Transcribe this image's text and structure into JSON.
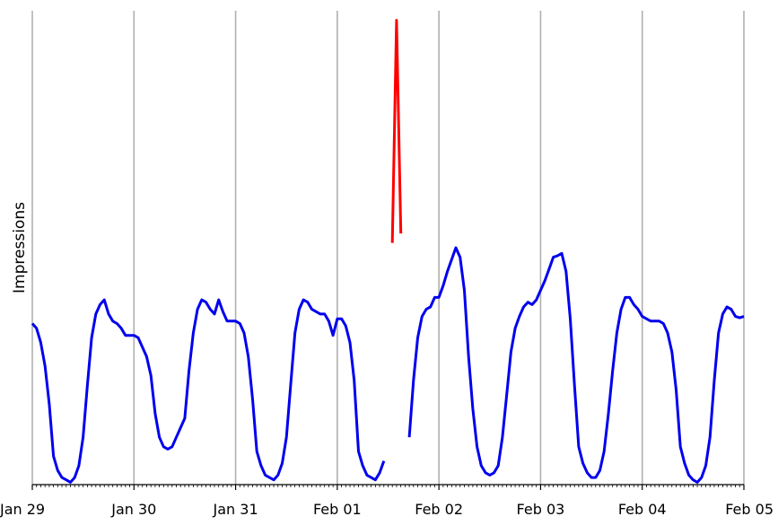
{
  "chart_data": {
    "type": "line",
    "title": "",
    "xlabel": "",
    "ylabel": "Impressions",
    "grid": "vertical",
    "x_axis": {
      "start": "2022-01-29T00:00",
      "end": "2022-02-05T00:00",
      "major_tick_labels": [
        "Jan 29",
        "Jan 30",
        "Jan 31",
        "Feb 01",
        "Feb 02",
        "Feb 03",
        "Feb 04",
        "Feb 05"
      ],
      "minor_ticks_per_day": 24
    },
    "y_axis": {
      "range": [
        0,
        100
      ],
      "tick_labels": []
    },
    "series": [
      {
        "color": "#0000ee",
        "segments": [
          [
            [
              "2022-01-29T00:00",
              34
            ],
            [
              "2022-01-29T01:00",
              33
            ],
            [
              "2022-01-29T02:00",
              30
            ],
            [
              "2022-01-29T03:00",
              25
            ],
            [
              "2022-01-29T04:00",
              17
            ],
            [
              "2022-01-29T05:00",
              6
            ],
            [
              "2022-01-29T06:00",
              3
            ],
            [
              "2022-01-29T07:00",
              1.5
            ],
            [
              "2022-01-29T08:00",
              1
            ],
            [
              "2022-01-29T09:00",
              0.5
            ],
            [
              "2022-01-29T10:00",
              1.5
            ],
            [
              "2022-01-29T11:00",
              4
            ],
            [
              "2022-01-29T12:00",
              10
            ],
            [
              "2022-01-29T13:00",
              21
            ],
            [
              "2022-01-29T14:00",
              31
            ],
            [
              "2022-01-29T15:00",
              36
            ],
            [
              "2022-01-29T16:00",
              38
            ],
            [
              "2022-01-29T17:00",
              39
            ],
            [
              "2022-01-29T18:00",
              36
            ],
            [
              "2022-01-29T19:00",
              34.5
            ],
            [
              "2022-01-29T20:00",
              34
            ],
            [
              "2022-01-29T21:00",
              33
            ],
            [
              "2022-01-29T22:00",
              31.5
            ],
            [
              "2022-01-29T23:00",
              31.5
            ],
            [
              "2022-01-30T00:00",
              31.5
            ],
            [
              "2022-01-30T01:00",
              31
            ],
            [
              "2022-01-30T02:00",
              29
            ],
            [
              "2022-01-30T03:00",
              27
            ],
            [
              "2022-01-30T04:00",
              23
            ],
            [
              "2022-01-30T05:00",
              15
            ],
            [
              "2022-01-30T06:00",
              10
            ],
            [
              "2022-01-30T07:00",
              8
            ],
            [
              "2022-01-30T08:00",
              7.5
            ],
            [
              "2022-01-30T09:00",
              8
            ],
            [
              "2022-01-30T10:00",
              10
            ],
            [
              "2022-01-30T11:00",
              12
            ],
            [
              "2022-01-30T12:00",
              14
            ],
            [
              "2022-01-30T13:00",
              24
            ],
            [
              "2022-01-30T14:00",
              32
            ],
            [
              "2022-01-30T15:00",
              37
            ],
            [
              "2022-01-30T16:00",
              39
            ],
            [
              "2022-01-30T17:00",
              38.5
            ],
            [
              "2022-01-30T18:00",
              37
            ],
            [
              "2022-01-30T19:00",
              36
            ],
            [
              "2022-01-30T20:00",
              39
            ],
            [
              "2022-01-30T21:00",
              36.5
            ],
            [
              "2022-01-30T22:00",
              34.5
            ],
            [
              "2022-01-30T23:00",
              34.5
            ],
            [
              "2022-01-31T00:00",
              34.5
            ],
            [
              "2022-01-31T01:00",
              34
            ],
            [
              "2022-01-31T02:00",
              32
            ],
            [
              "2022-01-31T03:00",
              27
            ],
            [
              "2022-01-31T04:00",
              18
            ],
            [
              "2022-01-31T05:00",
              7
            ],
            [
              "2022-01-31T06:00",
              4
            ],
            [
              "2022-01-31T07:00",
              2
            ],
            [
              "2022-01-31T08:00",
              1.5
            ],
            [
              "2022-01-31T09:00",
              1
            ],
            [
              "2022-01-31T10:00",
              2
            ],
            [
              "2022-01-31T11:00",
              4.5
            ],
            [
              "2022-01-31T12:00",
              10
            ],
            [
              "2022-01-31T13:00",
              21
            ],
            [
              "2022-01-31T14:00",
              32
            ],
            [
              "2022-01-31T15:00",
              37
            ],
            [
              "2022-01-31T16:00",
              39
            ],
            [
              "2022-01-31T17:00",
              38.5
            ],
            [
              "2022-01-31T18:00",
              37
            ],
            [
              "2022-01-31T19:00",
              36.5
            ],
            [
              "2022-01-31T20:00",
              36
            ],
            [
              "2022-01-31T21:00",
              36
            ],
            [
              "2022-01-31T22:00",
              34.5
            ],
            [
              "2022-01-31T23:00",
              31.5
            ],
            [
              "2022-02-01T00:00",
              35
            ],
            [
              "2022-02-01T01:00",
              35
            ],
            [
              "2022-02-01T02:00",
              33.5
            ],
            [
              "2022-02-01T03:00",
              30
            ],
            [
              "2022-02-01T04:00",
              22
            ],
            [
              "2022-02-01T05:00",
              7
            ],
            [
              "2022-02-01T06:00",
              4
            ],
            [
              "2022-02-01T07:00",
              2
            ],
            [
              "2022-02-01T08:00",
              1.5
            ],
            [
              "2022-02-01T09:00",
              1
            ],
            [
              "2022-02-01T10:00",
              2.5
            ],
            [
              "2022-02-01T11:00",
              5
            ]
          ],
          [
            [
              "2022-02-01T17:00",
              10
            ],
            [
              "2022-02-01T18:00",
              22
            ],
            [
              "2022-02-01T19:00",
              31
            ],
            [
              "2022-02-01T20:00",
              35.5
            ],
            [
              "2022-02-01T21:00",
              37
            ],
            [
              "2022-02-01T22:00",
              37.5
            ],
            [
              "2022-02-01T23:00",
              39.5
            ],
            [
              "2022-02-02T00:00",
              39.5
            ],
            [
              "2022-02-02T01:00",
              42
            ],
            [
              "2022-02-02T02:00",
              45
            ],
            [
              "2022-02-02T03:00",
              47.5
            ],
            [
              "2022-02-02T04:00",
              50
            ],
            [
              "2022-02-02T05:00",
              48
            ],
            [
              "2022-02-02T06:00",
              41
            ],
            [
              "2022-02-02T07:00",
              27
            ],
            [
              "2022-02-02T08:00",
              16
            ],
            [
              "2022-02-02T09:00",
              8
            ],
            [
              "2022-02-02T10:00",
              4
            ],
            [
              "2022-02-02T11:00",
              2.5
            ],
            [
              "2022-02-02T12:00",
              2
            ],
            [
              "2022-02-02T13:00",
              2.5
            ],
            [
              "2022-02-02T14:00",
              4
            ],
            [
              "2022-02-02T15:00",
              10
            ],
            [
              "2022-02-02T16:00",
              19
            ],
            [
              "2022-02-02T17:00",
              28
            ],
            [
              "2022-02-02T18:00",
              33
            ],
            [
              "2022-02-02T19:00",
              35.5
            ],
            [
              "2022-02-02T20:00",
              37.5
            ],
            [
              "2022-02-02T21:00",
              38.5
            ],
            [
              "2022-02-02T22:00",
              38
            ],
            [
              "2022-02-02T23:00",
              39
            ],
            [
              "2022-02-03T00:00",
              41
            ],
            [
              "2022-02-03T01:00",
              43
            ],
            [
              "2022-02-03T02:00",
              45.5
            ],
            [
              "2022-02-03T03:00",
              48
            ],
            [
              "2022-02-03T04:00",
              48.3
            ],
            [
              "2022-02-03T05:00",
              48.8
            ],
            [
              "2022-02-03T06:00",
              45
            ],
            [
              "2022-02-03T07:00",
              35
            ],
            [
              "2022-02-03T08:00",
              21
            ],
            [
              "2022-02-03T09:00",
              8
            ],
            [
              "2022-02-03T10:00",
              4.5
            ],
            [
              "2022-02-03T11:00",
              2.5
            ],
            [
              "2022-02-03T12:00",
              1.5
            ],
            [
              "2022-02-03T13:00",
              1.5
            ],
            [
              "2022-02-03T14:00",
              3
            ],
            [
              "2022-02-03T15:00",
              7
            ],
            [
              "2022-02-03T16:00",
              15
            ],
            [
              "2022-02-03T17:00",
              24
            ],
            [
              "2022-02-03T18:00",
              32
            ],
            [
              "2022-02-03T19:00",
              37
            ],
            [
              "2022-02-03T20:00",
              39.5
            ],
            [
              "2022-02-03T21:00",
              39.5
            ],
            [
              "2022-02-03T22:00",
              38
            ],
            [
              "2022-02-03T23:00",
              37
            ],
            [
              "2022-02-04T00:00",
              35.5
            ],
            [
              "2022-02-04T01:00",
              35
            ],
            [
              "2022-02-04T02:00",
              34.5
            ],
            [
              "2022-02-04T03:00",
              34.5
            ],
            [
              "2022-02-04T04:00",
              34.5
            ],
            [
              "2022-02-04T05:00",
              34
            ],
            [
              "2022-02-04T06:00",
              32
            ],
            [
              "2022-02-04T07:00",
              28
            ],
            [
              "2022-02-04T08:00",
              20
            ],
            [
              "2022-02-04T09:00",
              8
            ],
            [
              "2022-02-04T10:00",
              4.5
            ],
            [
              "2022-02-04T11:00",
              2
            ],
            [
              "2022-02-04T12:00",
              1
            ],
            [
              "2022-02-04T13:00",
              0.5
            ],
            [
              "2022-02-04T14:00",
              1.5
            ],
            [
              "2022-02-04T15:00",
              4
            ],
            [
              "2022-02-04T16:00",
              10
            ],
            [
              "2022-02-04T17:00",
              22
            ],
            [
              "2022-02-04T18:00",
              32
            ],
            [
              "2022-02-04T19:00",
              36
            ],
            [
              "2022-02-04T20:00",
              37.5
            ],
            [
              "2022-02-04T21:00",
              37
            ],
            [
              "2022-02-04T22:00",
              35.5
            ],
            [
              "2022-02-04T23:00",
              35.2
            ],
            [
              "2022-02-05T00:00",
              35.5
            ]
          ]
        ]
      },
      {
        "color": "#ff0000",
        "segments": [
          [
            [
              "2022-02-01T13:00",
              51
            ],
            [
              "2022-02-01T14:00",
              98
            ],
            [
              "2022-02-01T15:00",
              53
            ]
          ]
        ]
      }
    ]
  }
}
